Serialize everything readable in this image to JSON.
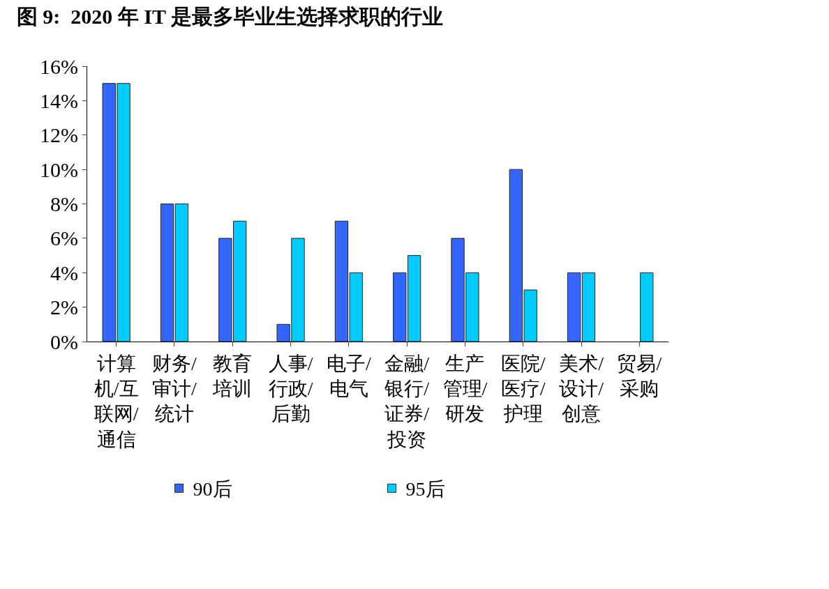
{
  "chart_data": {
    "type": "bar",
    "title": "图 9:  2020 年 IT 是最多毕业生选择求职的行业",
    "categories": [
      "计算机/互联网/通信",
      "财务/审计/统计",
      "教育培训",
      "人事/行政/后勤",
      "电子/电气",
      "金融/银行/证券/投资",
      "生产管理/研发",
      "医院/医疗/护理",
      "美术/设计/创意",
      "贸易/采购"
    ],
    "series": [
      {
        "name": "90后",
        "color": "#3366ff",
        "values": [
          15,
          8,
          6,
          1,
          7,
          4,
          6,
          10,
          4,
          null
        ]
      },
      {
        "name": "95后",
        "color": "#00ccff",
        "values": [
          15,
          8,
          7,
          6,
          4,
          5,
          4,
          3,
          4,
          4
        ]
      }
    ],
    "ylim": [
      0,
      16
    ],
    "yticks": [
      {
        "value": 0,
        "label": "0%"
      },
      {
        "value": 2,
        "label": "2%"
      },
      {
        "value": 4,
        "label": "4%"
      },
      {
        "value": 6,
        "label": "6%"
      },
      {
        "value": 8,
        "label": "8%"
      },
      {
        "value": 10,
        "label": "10%"
      },
      {
        "value": 12,
        "label": "12%"
      },
      {
        "value": 14,
        "label": "14%"
      },
      {
        "value": 16,
        "label": "16%"
      }
    ],
    "grid": false,
    "legend": "bottom"
  }
}
